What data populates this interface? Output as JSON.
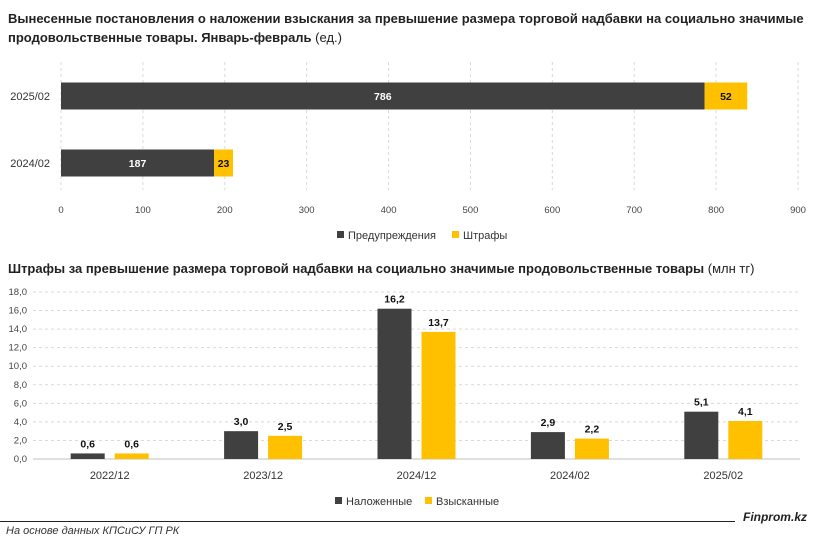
{
  "colors": {
    "dark": "#404040",
    "yellow": "#FFC000",
    "grid": "#d9d9d9"
  },
  "footer": {
    "source": "На основе данных КПСиСУ ГП РК",
    "brand": "Finprom.kz"
  },
  "chart_data": [
    {
      "type": "bar",
      "orientation": "horizontal",
      "stacked": true,
      "title_bold": "Вынесенные постановления о наложении взыскания за превышение размера торговой надбавки на социально значимые продовольственные товары. Январь-февраль",
      "title_unit": "(ед.)",
      "categories": [
        "2025/02",
        "2024/02"
      ],
      "series": [
        {
          "name": "Предупреждения",
          "color": "#404040",
          "values": [
            786,
            187
          ]
        },
        {
          "name": "Штрафы",
          "color": "#FFC000",
          "values": [
            52,
            23
          ]
        }
      ],
      "xlim": [
        0,
        900
      ],
      "xticks": [
        "0",
        "100",
        "200",
        "300",
        "400",
        "500",
        "600",
        "700",
        "800",
        "900"
      ],
      "xtick_values": [
        0,
        100,
        200,
        300,
        400,
        500,
        600,
        700,
        800,
        900
      ],
      "grid": true,
      "legend": "bottom"
    },
    {
      "type": "bar",
      "orientation": "vertical",
      "stacked": false,
      "title_bold": "Штрафы за превышение размера торговой надбавки на социально значимые продовольственные товары",
      "title_unit": "(млн тг)",
      "categories": [
        "2022/12",
        "2023/12",
        "2024/12",
        "2024/02",
        "2025/02"
      ],
      "series": [
        {
          "name": "Наложенные",
          "color": "#404040",
          "values": [
            0.6,
            3.0,
            16.2,
            2.9,
            5.1
          ],
          "labels": [
            "0,6",
            "3,0",
            "16,2",
            "2,9",
            "5,1"
          ]
        },
        {
          "name": "Взысканные",
          "color": "#FFC000",
          "values": [
            0.6,
            2.5,
            13.7,
            2.2,
            4.1
          ],
          "labels": [
            "0,6",
            "2,5",
            "13,7",
            "2,2",
            "4,1"
          ]
        }
      ],
      "ylim": [
        0,
        18
      ],
      "yticks": [
        "0,0",
        "2,0",
        "4,0",
        "6,0",
        "8,0",
        "10,0",
        "12,0",
        "14,0",
        "16,0",
        "18,0"
      ],
      "ytick_values": [
        0,
        2,
        4,
        6,
        8,
        10,
        12,
        14,
        16,
        18
      ],
      "grid": true,
      "legend": "bottom"
    }
  ]
}
